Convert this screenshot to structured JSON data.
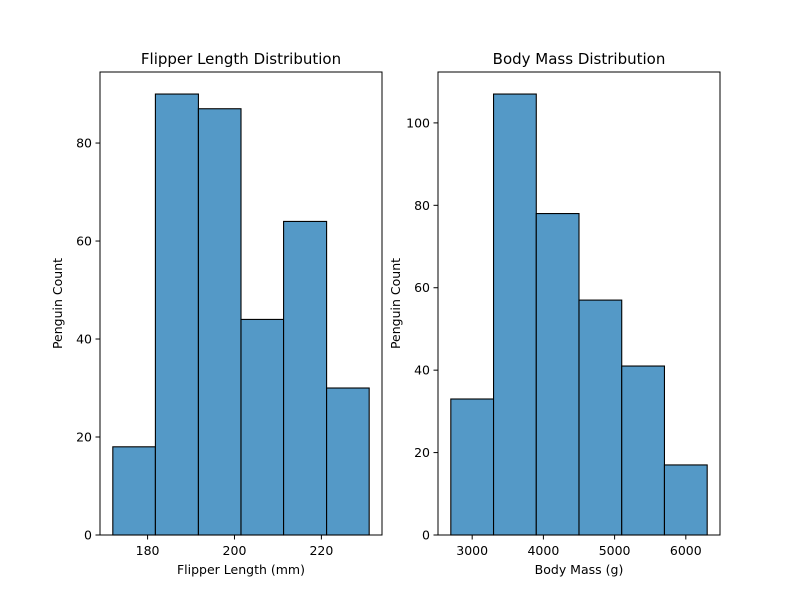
{
  "chart_data": [
    {
      "type": "bar",
      "title": "Flipper Length Distribution",
      "xlabel": "Flipper Length (mm)",
      "ylabel": "Penguin Count",
      "bins": [
        {
          "start": 172,
          "end": 181.8,
          "count": 18
        },
        {
          "start": 181.8,
          "end": 191.7,
          "count": 90
        },
        {
          "start": 191.7,
          "end": 201.5,
          "count": 87
        },
        {
          "start": 201.5,
          "end": 211.3,
          "count": 44
        },
        {
          "start": 211.3,
          "end": 221.2,
          "count": 64
        },
        {
          "start": 221.2,
          "end": 231,
          "count": 30
        }
      ],
      "xlim": [
        169.05,
        233.95
      ],
      "ylim": [
        0,
        94.5
      ],
      "xticks": [
        180,
        200,
        220
      ],
      "yticks": [
        0,
        20,
        40,
        60,
        80
      ],
      "bar_color": "#5499c7",
      "grid": false
    },
    {
      "type": "bar",
      "title": "Body Mass Distribution",
      "xlabel": "Body Mass (g)",
      "ylabel": "Penguin Count",
      "bins": [
        {
          "start": 2700,
          "end": 3300,
          "count": 33
        },
        {
          "start": 3300,
          "end": 3900,
          "count": 107
        },
        {
          "start": 3900,
          "end": 4500,
          "count": 78
        },
        {
          "start": 4500,
          "end": 5100,
          "count": 57
        },
        {
          "start": 5100,
          "end": 5700,
          "count": 41
        },
        {
          "start": 5700,
          "end": 6300,
          "count": 17
        }
      ],
      "xlim": [
        2520,
        6480
      ],
      "ylim": [
        0,
        112.35
      ],
      "xticks": [
        3000,
        4000,
        5000,
        6000
      ],
      "yticks": [
        0,
        20,
        40,
        60,
        80,
        100
      ],
      "bar_color": "#5499c7",
      "grid": false
    }
  ]
}
